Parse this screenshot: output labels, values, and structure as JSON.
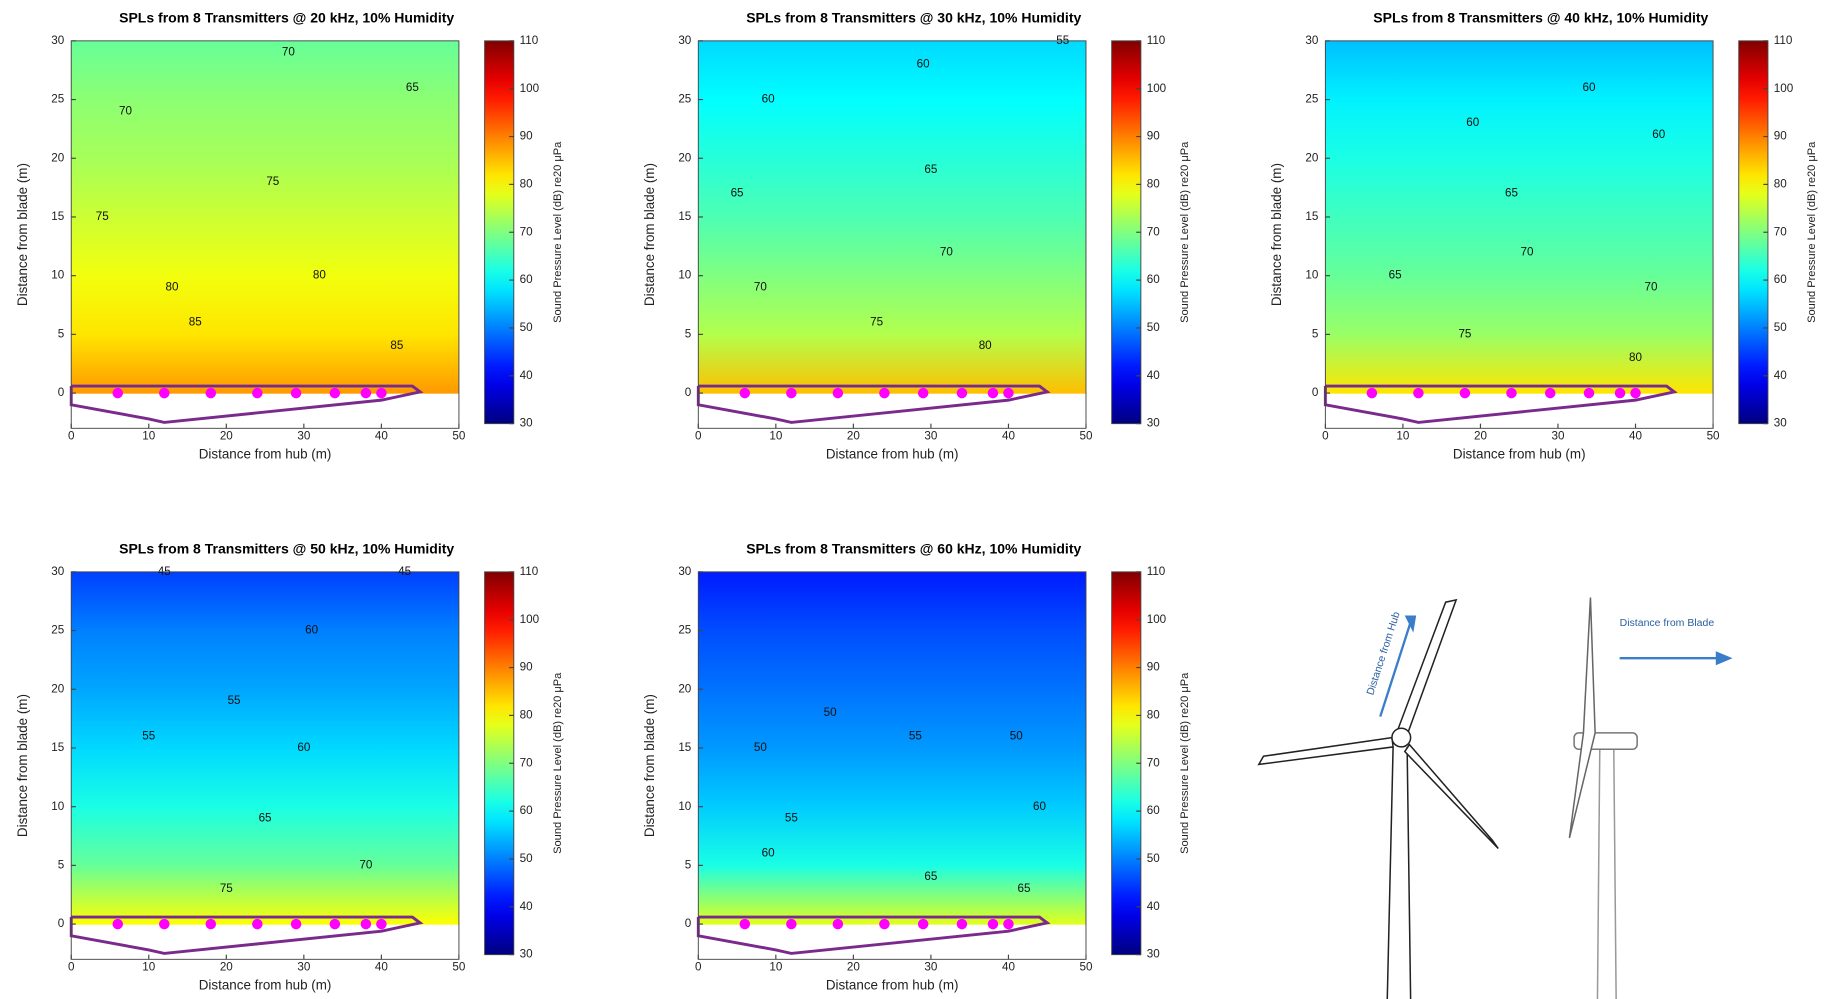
{
  "chart_data": [
    {
      "type": "contour",
      "title": "SPLs from 8 Transmitters @ 20 kHz, 10% Humidity",
      "x_label": "Distance from hub (m)",
      "y_label": "Distance from blade (m)",
      "colorbar_label": "Sound Pressure Level (dB) re20 μPa",
      "xlim": [
        0,
        50
      ],
      "ylim": [
        -3,
        30
      ],
      "xticks": [
        0,
        10,
        20,
        30,
        40,
        50
      ],
      "yticks": [
        0,
        5,
        10,
        15,
        20,
        25,
        30
      ],
      "clim": [
        30,
        110
      ],
      "cticks": [
        30,
        40,
        50,
        60,
        70,
        80,
        90,
        100,
        110
      ],
      "profile_y": [
        0,
        5,
        10,
        15,
        20,
        25,
        30
      ],
      "spl": [
        88,
        82,
        79,
        76,
        73,
        71,
        68
      ],
      "transmitters": {
        "color": "#ff00ff",
        "x": [
          6,
          12,
          18,
          24,
          29,
          34,
          38,
          40
        ],
        "y": [
          0,
          0,
          0,
          0,
          0,
          0,
          0,
          0
        ]
      },
      "contour_labels": [
        {
          "x": 28,
          "y": 29,
          "label": "70"
        },
        {
          "x": 7,
          "y": 24,
          "label": "70"
        },
        {
          "x": 44,
          "y": 26,
          "label": "65"
        },
        {
          "x": 26,
          "y": 18,
          "label": "75"
        },
        {
          "x": 4,
          "y": 15,
          "label": "75"
        },
        {
          "x": 32,
          "y": 10,
          "label": "80"
        },
        {
          "x": 13,
          "y": 9,
          "label": "80"
        },
        {
          "x": 16,
          "y": 6,
          "label": "85"
        },
        {
          "x": 42,
          "y": 4,
          "label": "85"
        }
      ]
    },
    {
      "type": "contour",
      "title": "SPLs from 8 Transmitters @ 30 kHz, 10% Humidity",
      "x_label": "Distance from hub (m)",
      "y_label": "Distance from blade (m)",
      "colorbar_label": "Sound Pressure Level (dB) re20 μPa",
      "xlim": [
        0,
        50
      ],
      "ylim": [
        -3,
        30
      ],
      "xticks": [
        0,
        10,
        20,
        30,
        40,
        50
      ],
      "yticks": [
        0,
        5,
        10,
        15,
        20,
        25,
        30
      ],
      "clim": [
        30,
        110
      ],
      "cticks": [
        30,
        40,
        50,
        60,
        70,
        80,
        90,
        100,
        110
      ],
      "profile_y": [
        0,
        5,
        10,
        15,
        20,
        25,
        30
      ],
      "spl": [
        85,
        74,
        70,
        66,
        63,
        60,
        57
      ],
      "transmitters": {
        "color": "#ff00ff",
        "x": [
          6,
          12,
          18,
          24,
          29,
          34,
          38,
          40
        ],
        "y": [
          0,
          0,
          0,
          0,
          0,
          0,
          0,
          0
        ]
      },
      "contour_labels": [
        {
          "x": 47,
          "y": 30,
          "label": "55"
        },
        {
          "x": 29,
          "y": 28,
          "label": "60"
        },
        {
          "x": 9,
          "y": 25,
          "label": "60"
        },
        {
          "x": 30,
          "y": 19,
          "label": "65"
        },
        {
          "x": 5,
          "y": 17,
          "label": "65"
        },
        {
          "x": 32,
          "y": 12,
          "label": "70"
        },
        {
          "x": 8,
          "y": 9,
          "label": "70"
        },
        {
          "x": 23,
          "y": 6,
          "label": "75"
        },
        {
          "x": 37,
          "y": 4,
          "label": "80"
        }
      ]
    },
    {
      "type": "contour",
      "title": "SPLs from 8 Transmitters @ 40 kHz, 10% Humidity",
      "x_label": "Distance from hub (m)",
      "y_label": "Distance from blade (m)",
      "colorbar_label": "Sound Pressure Level (dB) re20 μPa",
      "xlim": [
        0,
        50
      ],
      "ylim": [
        -3,
        30
      ],
      "xticks": [
        0,
        10,
        20,
        30,
        40,
        50
      ],
      "yticks": [
        0,
        5,
        10,
        15,
        20,
        25,
        30
      ],
      "clim": [
        30,
        110
      ],
      "cticks": [
        30,
        40,
        50,
        60,
        70,
        80,
        90,
        100,
        110
      ],
      "profile_y": [
        0,
        5,
        10,
        15,
        20,
        25,
        30
      ],
      "spl": [
        82,
        72,
        68,
        65,
        62,
        59,
        55
      ],
      "transmitters": {
        "color": "#ff00ff",
        "x": [
          6,
          12,
          18,
          24,
          29,
          34,
          38,
          40
        ],
        "y": [
          0,
          0,
          0,
          0,
          0,
          0,
          0,
          0
        ]
      },
      "contour_labels": [
        {
          "x": 34,
          "y": 26,
          "label": "60"
        },
        {
          "x": 19,
          "y": 23,
          "label": "60"
        },
        {
          "x": 43,
          "y": 22,
          "label": "60"
        },
        {
          "x": 24,
          "y": 17,
          "label": "65"
        },
        {
          "x": 9,
          "y": 10,
          "label": "65"
        },
        {
          "x": 26,
          "y": 12,
          "label": "70"
        },
        {
          "x": 42,
          "y": 9,
          "label": "70"
        },
        {
          "x": 18,
          "y": 5,
          "label": "75"
        },
        {
          "x": 40,
          "y": 3,
          "label": "80"
        }
      ]
    },
    {
      "type": "contour",
      "title": "SPLs from 8 Transmitters @ 50 kHz, 10% Humidity",
      "x_label": "Distance from hub (m)",
      "y_label": "Distance from blade (m)",
      "colorbar_label": "Sound Pressure Level (dB) re20 μPa",
      "xlim": [
        0,
        50
      ],
      "ylim": [
        -3,
        30
      ],
      "xticks": [
        0,
        10,
        20,
        30,
        40,
        50
      ],
      "yticks": [
        0,
        5,
        10,
        15,
        20,
        25,
        30
      ],
      "clim": [
        30,
        110
      ],
      "cticks": [
        30,
        40,
        50,
        60,
        70,
        80,
        90,
        100,
        110
      ],
      "profile_y": [
        0,
        5,
        10,
        15,
        20,
        25,
        30
      ],
      "spl": [
        80,
        68,
        62,
        57,
        53,
        50,
        45
      ],
      "transmitters": {
        "color": "#ff00ff",
        "x": [
          6,
          12,
          18,
          24,
          29,
          34,
          38,
          40
        ],
        "y": [
          0,
          0,
          0,
          0,
          0,
          0,
          0,
          0
        ]
      },
      "contour_labels": [
        {
          "x": 12,
          "y": 30,
          "label": "45"
        },
        {
          "x": 43,
          "y": 30,
          "label": "45"
        },
        {
          "x": 31,
          "y": 25,
          "label": "60"
        },
        {
          "x": 21,
          "y": 19,
          "label": "55"
        },
        {
          "x": 10,
          "y": 16,
          "label": "55"
        },
        {
          "x": 30,
          "y": 15,
          "label": "60"
        },
        {
          "x": 25,
          "y": 9,
          "label": "65"
        },
        {
          "x": 38,
          "y": 5,
          "label": "70"
        },
        {
          "x": 20,
          "y": 3,
          "label": "75"
        }
      ]
    },
    {
      "type": "contour",
      "title": "SPLs from 8 Transmitters @ 60 kHz, 10% Humidity",
      "x_label": "Distance from hub (m)",
      "y_label": "Distance from blade (m)",
      "colorbar_label": "Sound Pressure Level (dB) re20 μPa",
      "xlim": [
        0,
        50
      ],
      "ylim": [
        -3,
        30
      ],
      "xticks": [
        0,
        10,
        20,
        30,
        40,
        50
      ],
      "yticks": [
        0,
        5,
        10,
        15,
        20,
        25,
        30
      ],
      "clim": [
        30,
        110
      ],
      "cticks": [
        30,
        40,
        50,
        60,
        70,
        80,
        90,
        100,
        110
      ],
      "profile_y": [
        0,
        5,
        10,
        15,
        20,
        25,
        30
      ],
      "spl": [
        78,
        62,
        56,
        52,
        49,
        46,
        42
      ],
      "transmitters": {
        "color": "#ff00ff",
        "x": [
          6,
          12,
          18,
          24,
          29,
          34,
          38,
          40
        ],
        "y": [
          0,
          0,
          0,
          0,
          0,
          0,
          0,
          0
        ]
      },
      "contour_labels": [
        {
          "x": 17,
          "y": 18,
          "label": "50"
        },
        {
          "x": 28,
          "y": 16,
          "label": "55"
        },
        {
          "x": 8,
          "y": 15,
          "label": "50"
        },
        {
          "x": 41,
          "y": 16,
          "label": "50"
        },
        {
          "x": 12,
          "y": 9,
          "label": "55"
        },
        {
          "x": 44,
          "y": 10,
          "label": "60"
        },
        {
          "x": 9,
          "y": 6,
          "label": "60"
        },
        {
          "x": 30,
          "y": 4,
          "label": "65"
        },
        {
          "x": 42,
          "y": 3,
          "label": "65"
        }
      ]
    }
  ],
  "diagram": {
    "hub_label": "Distance from Hub",
    "blade_label": "Distance from Blade"
  }
}
